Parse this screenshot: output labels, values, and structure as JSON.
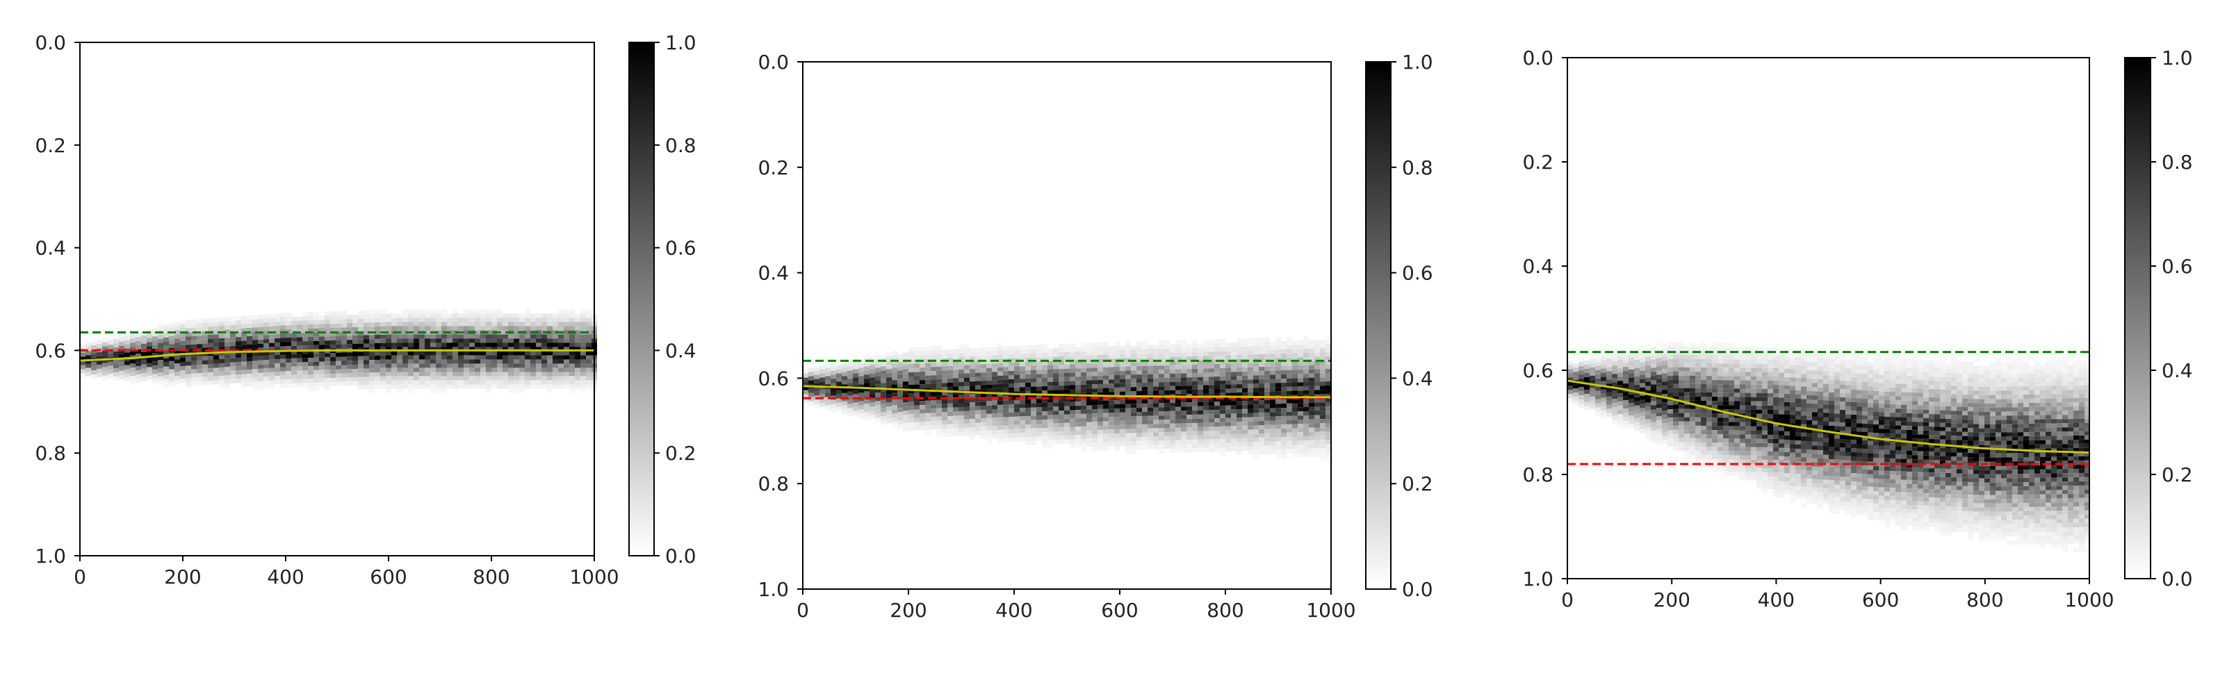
{
  "chart_data": [
    {
      "type": "heatmap",
      "title": "",
      "xlabel": "",
      "ylabel": "",
      "xlim": [
        0,
        1000
      ],
      "ylim": [
        1.0,
        0.0
      ],
      "x_ticks": [
        "0",
        "200",
        "400",
        "600",
        "800",
        "1000"
      ],
      "y_ticks": [
        "0.0",
        "0.2",
        "0.4",
        "0.6",
        "0.8",
        "1.0"
      ],
      "colorbar": {
        "range": [
          0.0,
          1.0
        ],
        "ticks": [
          "0.0",
          "0.2",
          "0.4",
          "0.6",
          "0.8",
          "1.0"
        ],
        "cmap": "gray_r"
      },
      "grid": false,
      "density_band": {
        "x": [
          0,
          200,
          400,
          600,
          800,
          1000
        ],
        "center": [
          0.62,
          0.605,
          0.6,
          0.6,
          0.6,
          0.6
        ],
        "spread": [
          0.012,
          0.025,
          0.028,
          0.03,
          0.03,
          0.03
        ]
      },
      "series": [
        {
          "color": "#c8c800",
          "style": "solid",
          "x": [
            0,
            100,
            200,
            300,
            400,
            500,
            600,
            700,
            800,
            900,
            1000
          ],
          "y": [
            0.62,
            0.615,
            0.607,
            0.603,
            0.601,
            0.6,
            0.6,
            0.6,
            0.6,
            0.6,
            0.6
          ]
        }
      ],
      "hlines": [
        {
          "y": 0.565,
          "color": "#008000",
          "style": "dashed"
        },
        {
          "y": 0.6,
          "color": "#ff0000",
          "style": "dashed"
        }
      ]
    },
    {
      "type": "heatmap",
      "title": "",
      "xlabel": "",
      "ylabel": "",
      "xlim": [
        0,
        1000
      ],
      "ylim": [
        1.0,
        0.0
      ],
      "x_ticks": [
        "0",
        "200",
        "400",
        "600",
        "800",
        "1000"
      ],
      "y_ticks": [
        "0.0",
        "0.2",
        "0.4",
        "0.6",
        "0.8",
        "1.0"
      ],
      "colorbar": {
        "range": [
          0.0,
          1.0
        ],
        "ticks": [
          "0.0",
          "0.2",
          "0.4",
          "0.6",
          "0.8",
          "1.0"
        ],
        "cmap": "gray_r"
      },
      "grid": false,
      "density_band": {
        "x": [
          0,
          200,
          400,
          600,
          800,
          1000
        ],
        "center": [
          0.615,
          0.622,
          0.63,
          0.635,
          0.636,
          0.636
        ],
        "spread": [
          0.012,
          0.03,
          0.036,
          0.04,
          0.042,
          0.044
        ]
      },
      "series": [
        {
          "color": "#c8c800",
          "style": "solid",
          "x": [
            0,
            100,
            200,
            300,
            400,
            500,
            600,
            700,
            800,
            900,
            1000
          ],
          "y": [
            0.615,
            0.618,
            0.622,
            0.626,
            0.63,
            0.632,
            0.634,
            0.635,
            0.635,
            0.636,
            0.636
          ]
        }
      ],
      "hlines": [
        {
          "y": 0.567,
          "color": "#008000",
          "style": "dashed"
        },
        {
          "y": 0.638,
          "color": "#ff0000",
          "style": "dashed"
        }
      ]
    },
    {
      "type": "heatmap",
      "title": "",
      "xlabel": "",
      "ylabel": "",
      "xlim": [
        0,
        1000
      ],
      "ylim": [
        1.0,
        0.0
      ],
      "x_ticks": [
        "0",
        "200",
        "400",
        "600",
        "800",
        "1000"
      ],
      "y_ticks": [
        "0.0",
        "0.2",
        "0.4",
        "0.6",
        "0.8",
        "1.0"
      ],
      "colorbar": {
        "range": [
          0.0,
          1.0
        ],
        "ticks": [
          "0.0",
          "0.2",
          "0.4",
          "0.6",
          "0.8",
          "1.0"
        ],
        "cmap": "gray_r"
      },
      "grid": false,
      "density_band": {
        "x": [
          0,
          200,
          400,
          600,
          800,
          1000
        ],
        "center": [
          0.62,
          0.65,
          0.7,
          0.735,
          0.755,
          0.765
        ],
        "spread": [
          0.014,
          0.04,
          0.055,
          0.062,
          0.066,
          0.07
        ]
      },
      "series": [
        {
          "color": "#c8c800",
          "style": "solid",
          "x": [
            0,
            100,
            200,
            300,
            400,
            500,
            600,
            700,
            800,
            900,
            1000
          ],
          "y": [
            0.62,
            0.635,
            0.655,
            0.68,
            0.702,
            0.718,
            0.732,
            0.742,
            0.75,
            0.755,
            0.758
          ]
        }
      ],
      "hlines": [
        {
          "y": 0.565,
          "color": "#008000",
          "style": "dashed"
        },
        {
          "y": 0.78,
          "color": "#ff0000",
          "style": "dashed"
        }
      ]
    }
  ]
}
